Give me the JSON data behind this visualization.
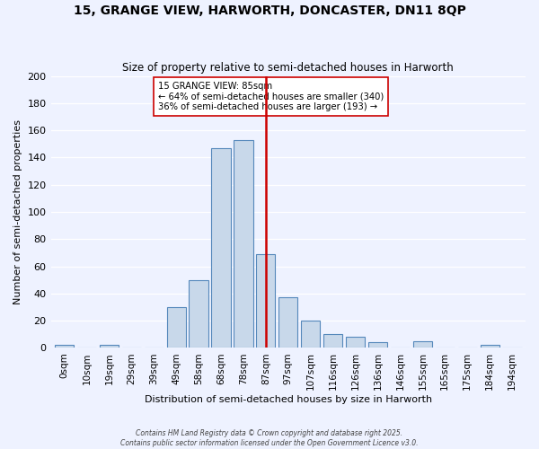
{
  "title1": "15, GRANGE VIEW, HARWORTH, DONCASTER, DN11 8QP",
  "title2": "Size of property relative to semi-detached houses in Harworth",
  "xlabel": "Distribution of semi-detached houses by size in Harworth",
  "ylabel": "Number of semi-detached properties",
  "bin_labels": [
    "0sqm",
    "10sqm",
    "19sqm",
    "29sqm",
    "39sqm",
    "49sqm",
    "58sqm",
    "68sqm",
    "78sqm",
    "87sqm",
    "97sqm",
    "107sqm",
    "116sqm",
    "126sqm",
    "136sqm",
    "146sqm",
    "155sqm",
    "165sqm",
    "175sqm",
    "184sqm",
    "194sqm"
  ],
  "bin_values": [
    2,
    0,
    2,
    0,
    0,
    30,
    50,
    147,
    153,
    69,
    37,
    20,
    10,
    8,
    4,
    0,
    5,
    0,
    0,
    2,
    0
  ],
  "bar_color": "#c8d8ea",
  "bar_edge_color": "#5588bb",
  "vline_x_label": "87sqm",
  "vline_color": "#cc0000",
  "annotation_title": "15 GRANGE VIEW: 85sqm",
  "annotation_line1": "← 64% of semi-detached houses are smaller (340)",
  "annotation_line2": "36% of semi-detached houses are larger (193) →",
  "annotation_box_color": "#ffffff",
  "annotation_box_edge": "#cc0000",
  "footer1": "Contains HM Land Registry data © Crown copyright and database right 2025.",
  "footer2": "Contains public sector information licensed under the Open Government Licence v3.0.",
  "background_color": "#eef2ff",
  "ylim": [
    0,
    200
  ],
  "yticks": [
    0,
    20,
    40,
    60,
    80,
    100,
    120,
    140,
    160,
    180,
    200
  ]
}
